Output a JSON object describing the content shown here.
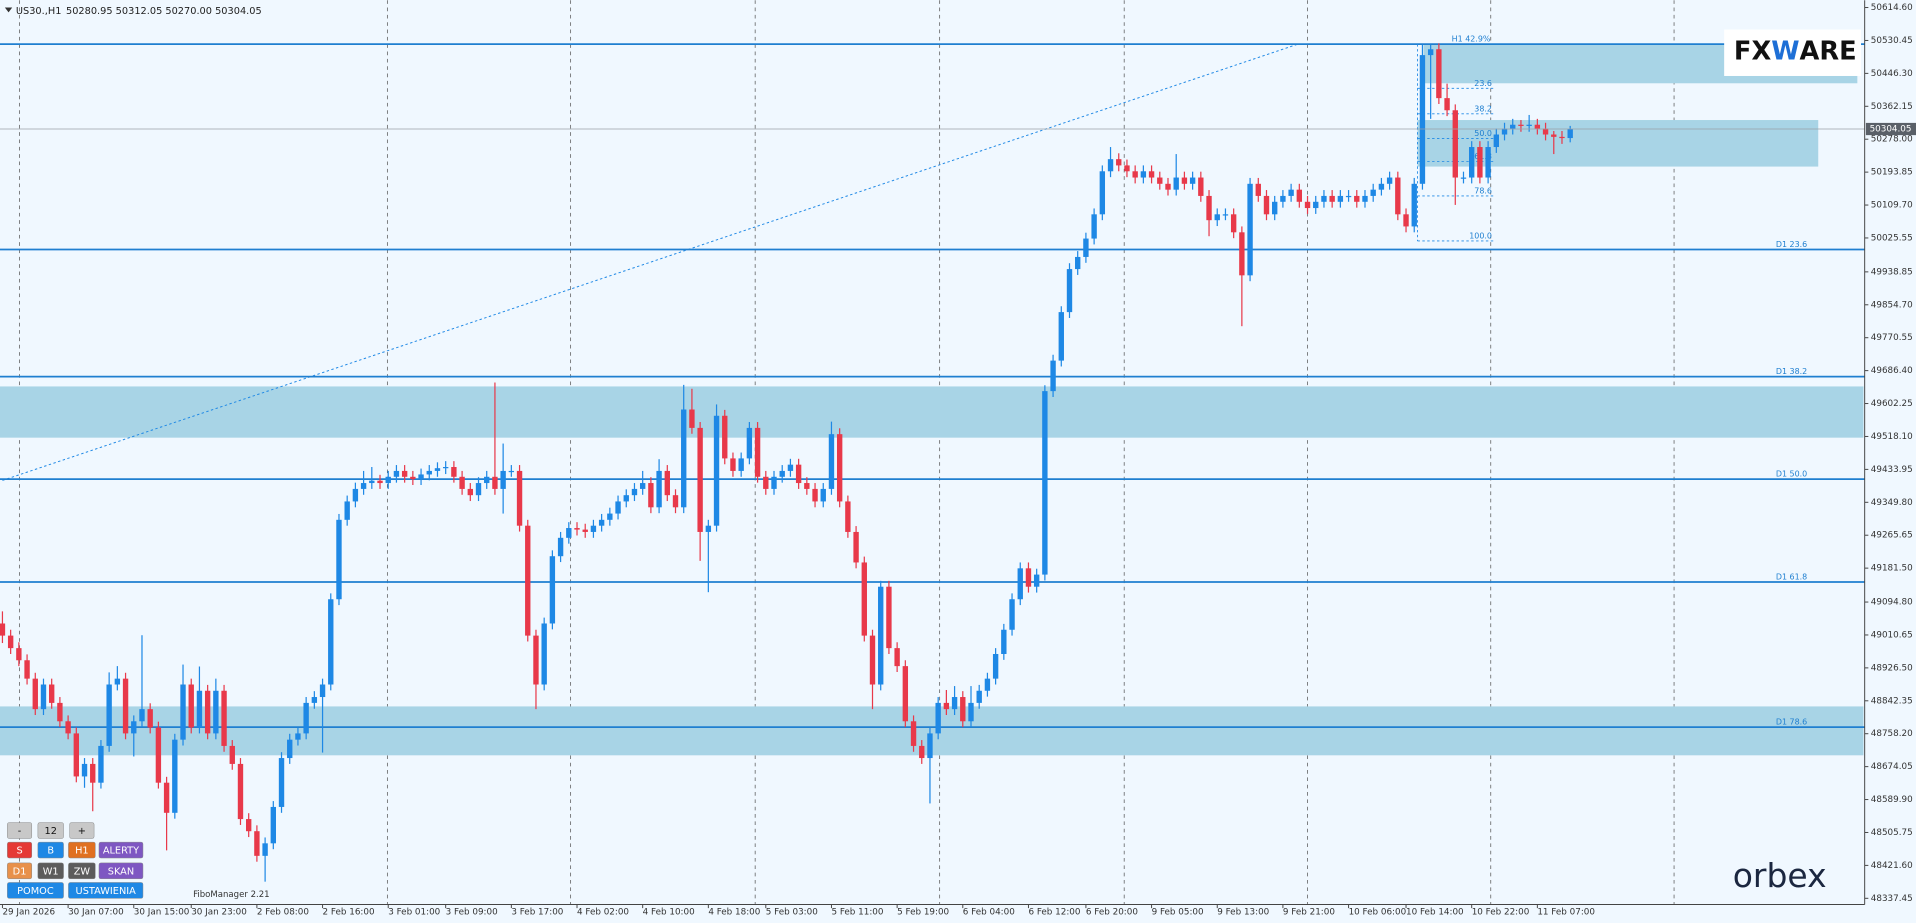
{
  "chart_data": {
    "type": "candlestick",
    "symbol": "US30.,H1",
    "ohlc_text": "50280.95 50312.05 50270.00 50304.05",
    "up_color": "#1e88e5",
    "down_color": "#e8394a",
    "grid": true,
    "ylim": [
      48290.5,
      50633.3
    ],
    "yticks": [
      {
        "value": 50614.6,
        "label": "50614.60"
      },
      50530.45,
      {
        "value": 50446.3,
        "label": "50446.30"
      },
      50362.15,
      {
        "value": 50278,
        "label": "50278.00"
      },
      50193.85,
      {
        "value": 50109.7,
        "label": "50109.70"
      },
      50025.55,
      49938.85,
      {
        "value": 49854.7,
        "label": "49854.70"
      },
      49770.55,
      {
        "value": 49686.4,
        "label": "49686.40"
      },
      49602.25,
      {
        "value": 49518.1,
        "label": "49518.10"
      },
      49433.95,
      {
        "value": 49349.8,
        "label": "49349.80"
      },
      49265.65,
      {
        "value": 49181.5,
        "label": "49181.50"
      },
      {
        "value": 49094.8,
        "label": "49094.80"
      },
      49010.65,
      {
        "value": 48926.5,
        "label": "48926.50"
      },
      48842.35,
      {
        "value": 48758.2,
        "label": "48758.20"
      },
      48674.05,
      {
        "value": 48589.9,
        "label": "48589.90"
      },
      48505.75,
      {
        "value": 48421.6,
        "label": "48421.60"
      },
      48337.45
    ],
    "categories": [
      "29 Jan 2026",
      null,
      null,
      null,
      null,
      null,
      null,
      null,
      "30 Jan 07:00",
      null,
      null,
      null,
      null,
      null,
      null,
      null,
      "30 Jan 15:00",
      null,
      null,
      null,
      null,
      null,
      null,
      "30 Jan 23:00",
      null,
      null,
      null,
      null,
      null,
      null,
      null,
      "2 Feb 08:00",
      null,
      null,
      null,
      null,
      null,
      null,
      null,
      "2 Feb 16:00",
      null,
      null,
      null,
      null,
      null,
      null,
      null,
      "3 Feb 01:00",
      null,
      null,
      null,
      null,
      null,
      null,
      "3 Feb 09:00",
      null,
      null,
      null,
      null,
      null,
      null,
      null,
      "3 Feb 17:00",
      null,
      null,
      null,
      null,
      null,
      null,
      null,
      "4 Feb 02:00",
      null,
      null,
      null,
      null,
      null,
      null,
      null,
      "4 Feb 10:00",
      null,
      null,
      null,
      null,
      null,
      null,
      null,
      "4 Feb 18:00",
      null,
      null,
      null,
      null,
      null,
      null,
      "5 Feb 03:00",
      null,
      null,
      null,
      null,
      null,
      null,
      null,
      "5 Feb 11:00",
      null,
      null,
      null,
      null,
      null,
      null,
      null,
      "5 Feb 19:00",
      null,
      null,
      null,
      null,
      null,
      null,
      null,
      "6 Feb 04:00",
      null,
      null,
      null,
      null,
      null,
      null,
      null,
      "6 Feb 12:00",
      null,
      null,
      null,
      null,
      null,
      null,
      "6 Feb 20:00",
      null,
      null,
      null,
      null,
      null,
      null,
      null,
      "9 Feb 05:00",
      null,
      null,
      null,
      null,
      null,
      null,
      null,
      "9 Feb 13:00",
      null,
      null,
      null,
      null,
      null,
      null,
      null,
      "9 Feb 21:00",
      null,
      null,
      null,
      null,
      null,
      null,
      null,
      "10 Feb 06:00",
      null,
      null,
      null,
      null,
      null,
      null,
      "10 Feb 14:00",
      null,
      null,
      null,
      null,
      null,
      null,
      null,
      "10 Feb 22:00",
      null,
      null,
      null,
      null,
      null,
      null,
      null,
      "11 Feb 07:00",
      null,
      null,
      null,
      null
    ],
    "open": [
      49040,
      49009,
      48977,
      48946,
      48899,
      48821,
      48884,
      48837,
      48790,
      48759,
      48649,
      48681,
      48633,
      48727,
      48884,
      48899,
      48759,
      48790,
      48821,
      48774,
      48633,
      48556,
      48743,
      48884,
      48774,
      48868,
      48759,
      48868,
      48727,
      48681,
      48540,
      48509,
      48446,
      48478,
      48571,
      48696,
      48743,
      48759,
      48837,
      48852,
      48884,
      49102,
      49305,
      49352,
      49384,
      49399,
      49405,
      49399,
      49415,
      49430,
      49415,
      49409,
      49421,
      49430,
      49437,
      49440,
      49415,
      49384,
      49368,
      49399,
      49415,
      49384,
      49430,
      49430,
      49290,
      49009,
      48884,
      49040,
      49212,
      49259,
      49284,
      49280,
      49274,
      49290,
      49305,
      49321,
      49352,
      49368,
      49384,
      49399,
      49337,
      49430,
      49368,
      49337,
      49587,
      49540,
      49274,
      49290,
      49571,
      49462,
      49430,
      49462,
      49540,
      49415,
      49384,
      49415,
      49430,
      49446,
      49399,
      49384,
      49352,
      49384,
      49524,
      49352,
      49274,
      49196,
      49009,
      48884,
      49134,
      48977,
      48931,
      48790,
      48727,
      48696,
      48759,
      48837,
      48821,
      48852,
      48790,
      48837,
      48868,
      48899,
      48962,
      49024,
      49102,
      49181,
      49134,
      49165,
      49634,
      49712,
      49836,
      49946,
      49977,
      50024,
      50086,
      50196,
      50227,
      50211,
      50196,
      50180,
      50196,
      50180,
      50164,
      50149,
      50180,
      50164,
      50180,
      50133,
      50071,
      50086,
      50086,
      50040,
      49930,
      50164,
      50133,
      50086,
      50118,
      50133,
      50149,
      50118,
      50102,
      50118,
      50133,
      50118,
      50133,
      50133,
      50118,
      50133,
      50149,
      50164,
      50180,
      50086,
      50055,
      50164,
      50493,
      50508,
      50383,
      50352,
      50180,
      50180,
      50258,
      50180,
      50258,
      50290,
      50305,
      50315,
      50312,
      50315,
      50305,
      50290,
      50284,
      50280.95
    ],
    "high": [
      49071,
      49024,
      48992,
      48961,
      48914,
      48899,
      48899,
      48852,
      48805,
      48774,
      48696,
      48696,
      48742,
      48915,
      48931,
      48914,
      48805,
      49010,
      48836,
      48789,
      48648,
      48758,
      48935,
      48899,
      48930,
      48883,
      48899,
      48883,
      48742,
      48696,
      48555,
      48524,
      48493,
      48586,
      48711,
      48758,
      48774,
      48852,
      48867,
      48899,
      49117,
      49320,
      49367,
      49400,
      49430,
      49440,
      49420,
      49430,
      49445,
      49445,
      49430,
      49436,
      49445,
      49452,
      49455,
      49455,
      49430,
      49399,
      49414,
      49430,
      49656,
      49500,
      49445,
      49445,
      49305,
      49024,
      49055,
      49227,
      49274,
      49299,
      49299,
      49295,
      49305,
      49320,
      49336,
      49367,
      49383,
      49399,
      49430,
      49414,
      49460,
      49445,
      49383,
      49650,
      49640,
      49555,
      49305,
      49600,
      49586,
      49477,
      49477,
      49555,
      49555,
      49430,
      49430,
      49445,
      49461,
      49461,
      49414,
      49399,
      49399,
      49556,
      49539,
      49367,
      49289,
      49211,
      49024,
      49149,
      49149,
      48992,
      48946,
      48805,
      48742,
      48774,
      48852,
      48870,
      48880,
      48867,
      48880,
      48883,
      48914,
      48977,
      49039,
      49117,
      49196,
      49196,
      49180,
      49649,
      49727,
      49851,
      49961,
      49992,
      50039,
      50101,
      50211,
      50258,
      50242,
      50226,
      50211,
      50211,
      50211,
      50195,
      50179,
      50240,
      50195,
      50195,
      50195,
      50148,
      50101,
      50101,
      50101,
      50055,
      50179,
      50179,
      50148,
      50133,
      50148,
      50164,
      50164,
      50133,
      50133,
      50148,
      50148,
      50148,
      50148,
      50148,
      50148,
      50164,
      50179,
      50195,
      50195,
      50101,
      50179,
      50519,
      50519,
      50523,
      50420,
      50367,
      50195,
      50273,
      50273,
      50273,
      50305,
      50320,
      50330,
      50327,
      50340,
      50330,
      50320,
      50299,
      50299,
      50312.05
    ],
    "low": [
      48990,
      48962,
      48931,
      48884,
      48806,
      48806,
      48822,
      48775,
      48744,
      48634,
      48620,
      48560,
      48618,
      48712,
      48869,
      48744,
      48700,
      48775,
      48759,
      48618,
      48460,
      48541,
      48728,
      48759,
      48759,
      48744,
      48744,
      48712,
      48666,
      48525,
      48494,
      48431,
      48380,
      48463,
      48556,
      48681,
      48728,
      48744,
      48822,
      48710,
      48869,
      49087,
      49290,
      49337,
      49369,
      49384,
      49384,
      49384,
      49400,
      49400,
      49394,
      49394,
      49406,
      49415,
      49422,
      49400,
      49369,
      49353,
      49353,
      49384,
      49369,
      49321,
      49415,
      49275,
      48994,
      48821,
      48869,
      49025,
      49197,
      49244,
      49265,
      49259,
      49259,
      49275,
      49290,
      49306,
      49337,
      49353,
      49369,
      49322,
      49322,
      49353,
      49322,
      49322,
      49525,
      49200,
      49120,
      49275,
      49447,
      49415,
      49415,
      49447,
      49400,
      49369,
      49369,
      49400,
      49415,
      49384,
      49369,
      49337,
      49337,
      49369,
      49337,
      49259,
      49181,
      48994,
      48821,
      48869,
      48962,
      48916,
      48775,
      48712,
      48681,
      48580,
      48744,
      48806,
      48806,
      48775,
      48775,
      48822,
      48853,
      48884,
      48947,
      49009,
      49087,
      49119,
      49119,
      49150,
      49619,
      49697,
      49821,
      49931,
      49962,
      50009,
      50071,
      50181,
      50196,
      50181,
      50165,
      50165,
      50165,
      50149,
      50134,
      50134,
      50149,
      50149,
      50118,
      50030,
      50056,
      50071,
      50025,
      49800,
      49915,
      50118,
      50071,
      50071,
      50103,
      50118,
      50103,
      50087,
      50087,
      50103,
      50103,
      50103,
      50118,
      50103,
      50103,
      50118,
      50134,
      50149,
      50071,
      50040,
      50040,
      50149,
      50330,
      50368,
      50337,
      50110,
      50165,
      50165,
      50165,
      50165,
      50243,
      50275,
      50290,
      50297,
      50297,
      50290,
      50275,
      50240,
      50266,
      50270
    ],
    "close": [
      49009,
      48977,
      48946,
      48899,
      48821,
      48884,
      48837,
      48790,
      48759,
      48649,
      48681,
      48633,
      48727,
      48884,
      48899,
      48759,
      48790,
      48821,
      48774,
      48633,
      48556,
      48743,
      48884,
      48774,
      48868,
      48759,
      48868,
      48727,
      48681,
      48540,
      48509,
      48446,
      48478,
      48571,
      48696,
      48743,
      48759,
      48837,
      48852,
      48884,
      49102,
      49305,
      49352,
      49384,
      49399,
      49405,
      49399,
      49415,
      49430,
      49415,
      49409,
      49421,
      49430,
      49437,
      49440,
      49415,
      49384,
      49368,
      49399,
      49415,
      49384,
      49430,
      49430,
      49290,
      49009,
      48884,
      49040,
      49212,
      49259,
      49284,
      49280,
      49274,
      49290,
      49305,
      49321,
      49352,
      49368,
      49384,
      49399,
      49337,
      49430,
      49368,
      49337,
      49587,
      49540,
      49274,
      49290,
      49571,
      49462,
      49430,
      49462,
      49540,
      49415,
      49384,
      49415,
      49430,
      49446,
      49399,
      49384,
      49352,
      49384,
      49524,
      49352,
      49274,
      49196,
      49009,
      48884,
      49134,
      48977,
      48931,
      48790,
      48727,
      48696,
      48759,
      48837,
      48821,
      48852,
      48790,
      48837,
      48868,
      48899,
      48962,
      49024,
      49102,
      49181,
      49134,
      49165,
      49634,
      49712,
      49836,
      49946,
      49977,
      50024,
      50086,
      50196,
      50227,
      50211,
      50196,
      50180,
      50196,
      50180,
      50164,
      50149,
      50180,
      50164,
      50180,
      50133,
      50071,
      50086,
      50086,
      50040,
      49930,
      50164,
      50133,
      50086,
      50118,
      50133,
      50149,
      50118,
      50102,
      50118,
      50133,
      50118,
      50133,
      50133,
      50118,
      50133,
      50149,
      50164,
      50180,
      50086,
      50055,
      50164,
      50493,
      50508,
      50383,
      50352,
      50180,
      50180,
      50258,
      50180,
      50258,
      50290,
      50305,
      50315,
      50312,
      50315,
      50305,
      50290,
      50284,
      50280.95,
      50304.05
    ],
    "levels": [
      {
        "label": "H1 42.9%",
        "value": 50521
      },
      {
        "label": "D1 23.6",
        "value": 49996
      },
      {
        "label": "D1 38.2",
        "value": 49671
      },
      {
        "label": "D1 50.0",
        "value": 49409
      },
      {
        "label": "D1 61.8",
        "value": 49146
      },
      {
        "label": "D1 78.6",
        "value": 48775
      }
    ],
    "fib_levels": [
      {
        "label": "23.6",
        "value": 50408
      },
      {
        "label": "38.2",
        "value": 50343
      },
      {
        "label": "50.0",
        "value": 50280
      },
      {
        "label": "61.8",
        "value": 50221
      },
      {
        "label": "78.6",
        "value": 50133
      },
      {
        "label": "100.0",
        "value": 50018
      }
    ],
    "zones": [
      {
        "high": 50521,
        "low": 50421
      },
      {
        "high": 50327,
        "low": 50208
      },
      {
        "high": 49646,
        "low": 49515
      },
      {
        "high": 48828,
        "low": 48703
      }
    ]
  },
  "ui": {
    "buttons": [
      [
        "-",
        "12",
        "+"
      ],
      [
        "S",
        "B",
        "H1",
        "ALERTY"
      ],
      [
        "D1",
        "W1",
        "ZW",
        "SKAN"
      ],
      [
        "POMOC",
        "USTAWIENIA"
      ]
    ],
    "indicator": "FiboManager 2.21",
    "logo_top": [
      "FX",
      "W",
      "ARE"
    ],
    "logo_bottom": "orbex"
  }
}
